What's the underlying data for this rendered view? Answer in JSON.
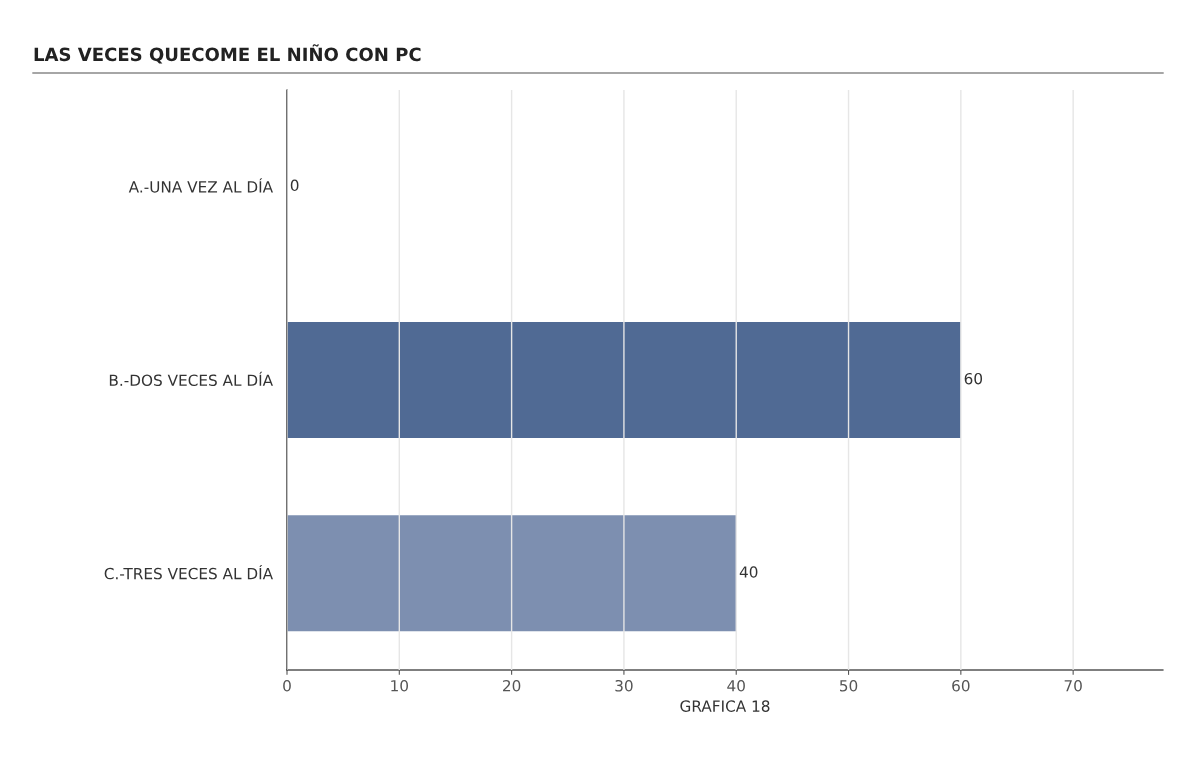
{
  "chart_data": {
    "type": "bar",
    "orientation": "horizontal",
    "title": "LAS VECES QUECOME EL NIÑO CON PC",
    "xlabel": "GRAFICA 18",
    "categories": [
      "A.-UNA VEZ AL DÍA",
      "B.-DOS VECES AL DÍA",
      "C.-TRES VECES AL DÍA"
    ],
    "values": [
      0,
      60,
      40
    ],
    "colors": [
      "#506a94",
      "#506a94",
      "#7d8fb0"
    ],
    "xlim": [
      0,
      78
    ],
    "xticks": [
      0,
      10,
      20,
      30,
      40,
      50,
      60,
      70
    ],
    "grid": "x",
    "data_labels": true,
    "legend": false
  }
}
